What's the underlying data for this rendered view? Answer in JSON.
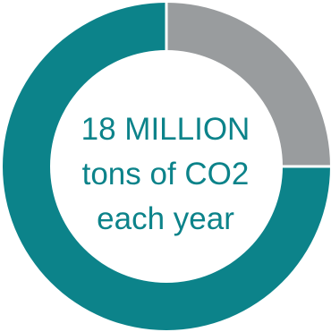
{
  "chart_data": {
    "type": "pie",
    "categories": [
      "teal",
      "gray"
    ],
    "values": [
      75,
      25
    ],
    "colors": {
      "teal": "#0c838a",
      "gray": "#999c9e",
      "center": "#ffffff"
    },
    "center_label": {
      "line1": "18 MILLION",
      "line2": "tons of CO2",
      "line3": "each year"
    }
  }
}
